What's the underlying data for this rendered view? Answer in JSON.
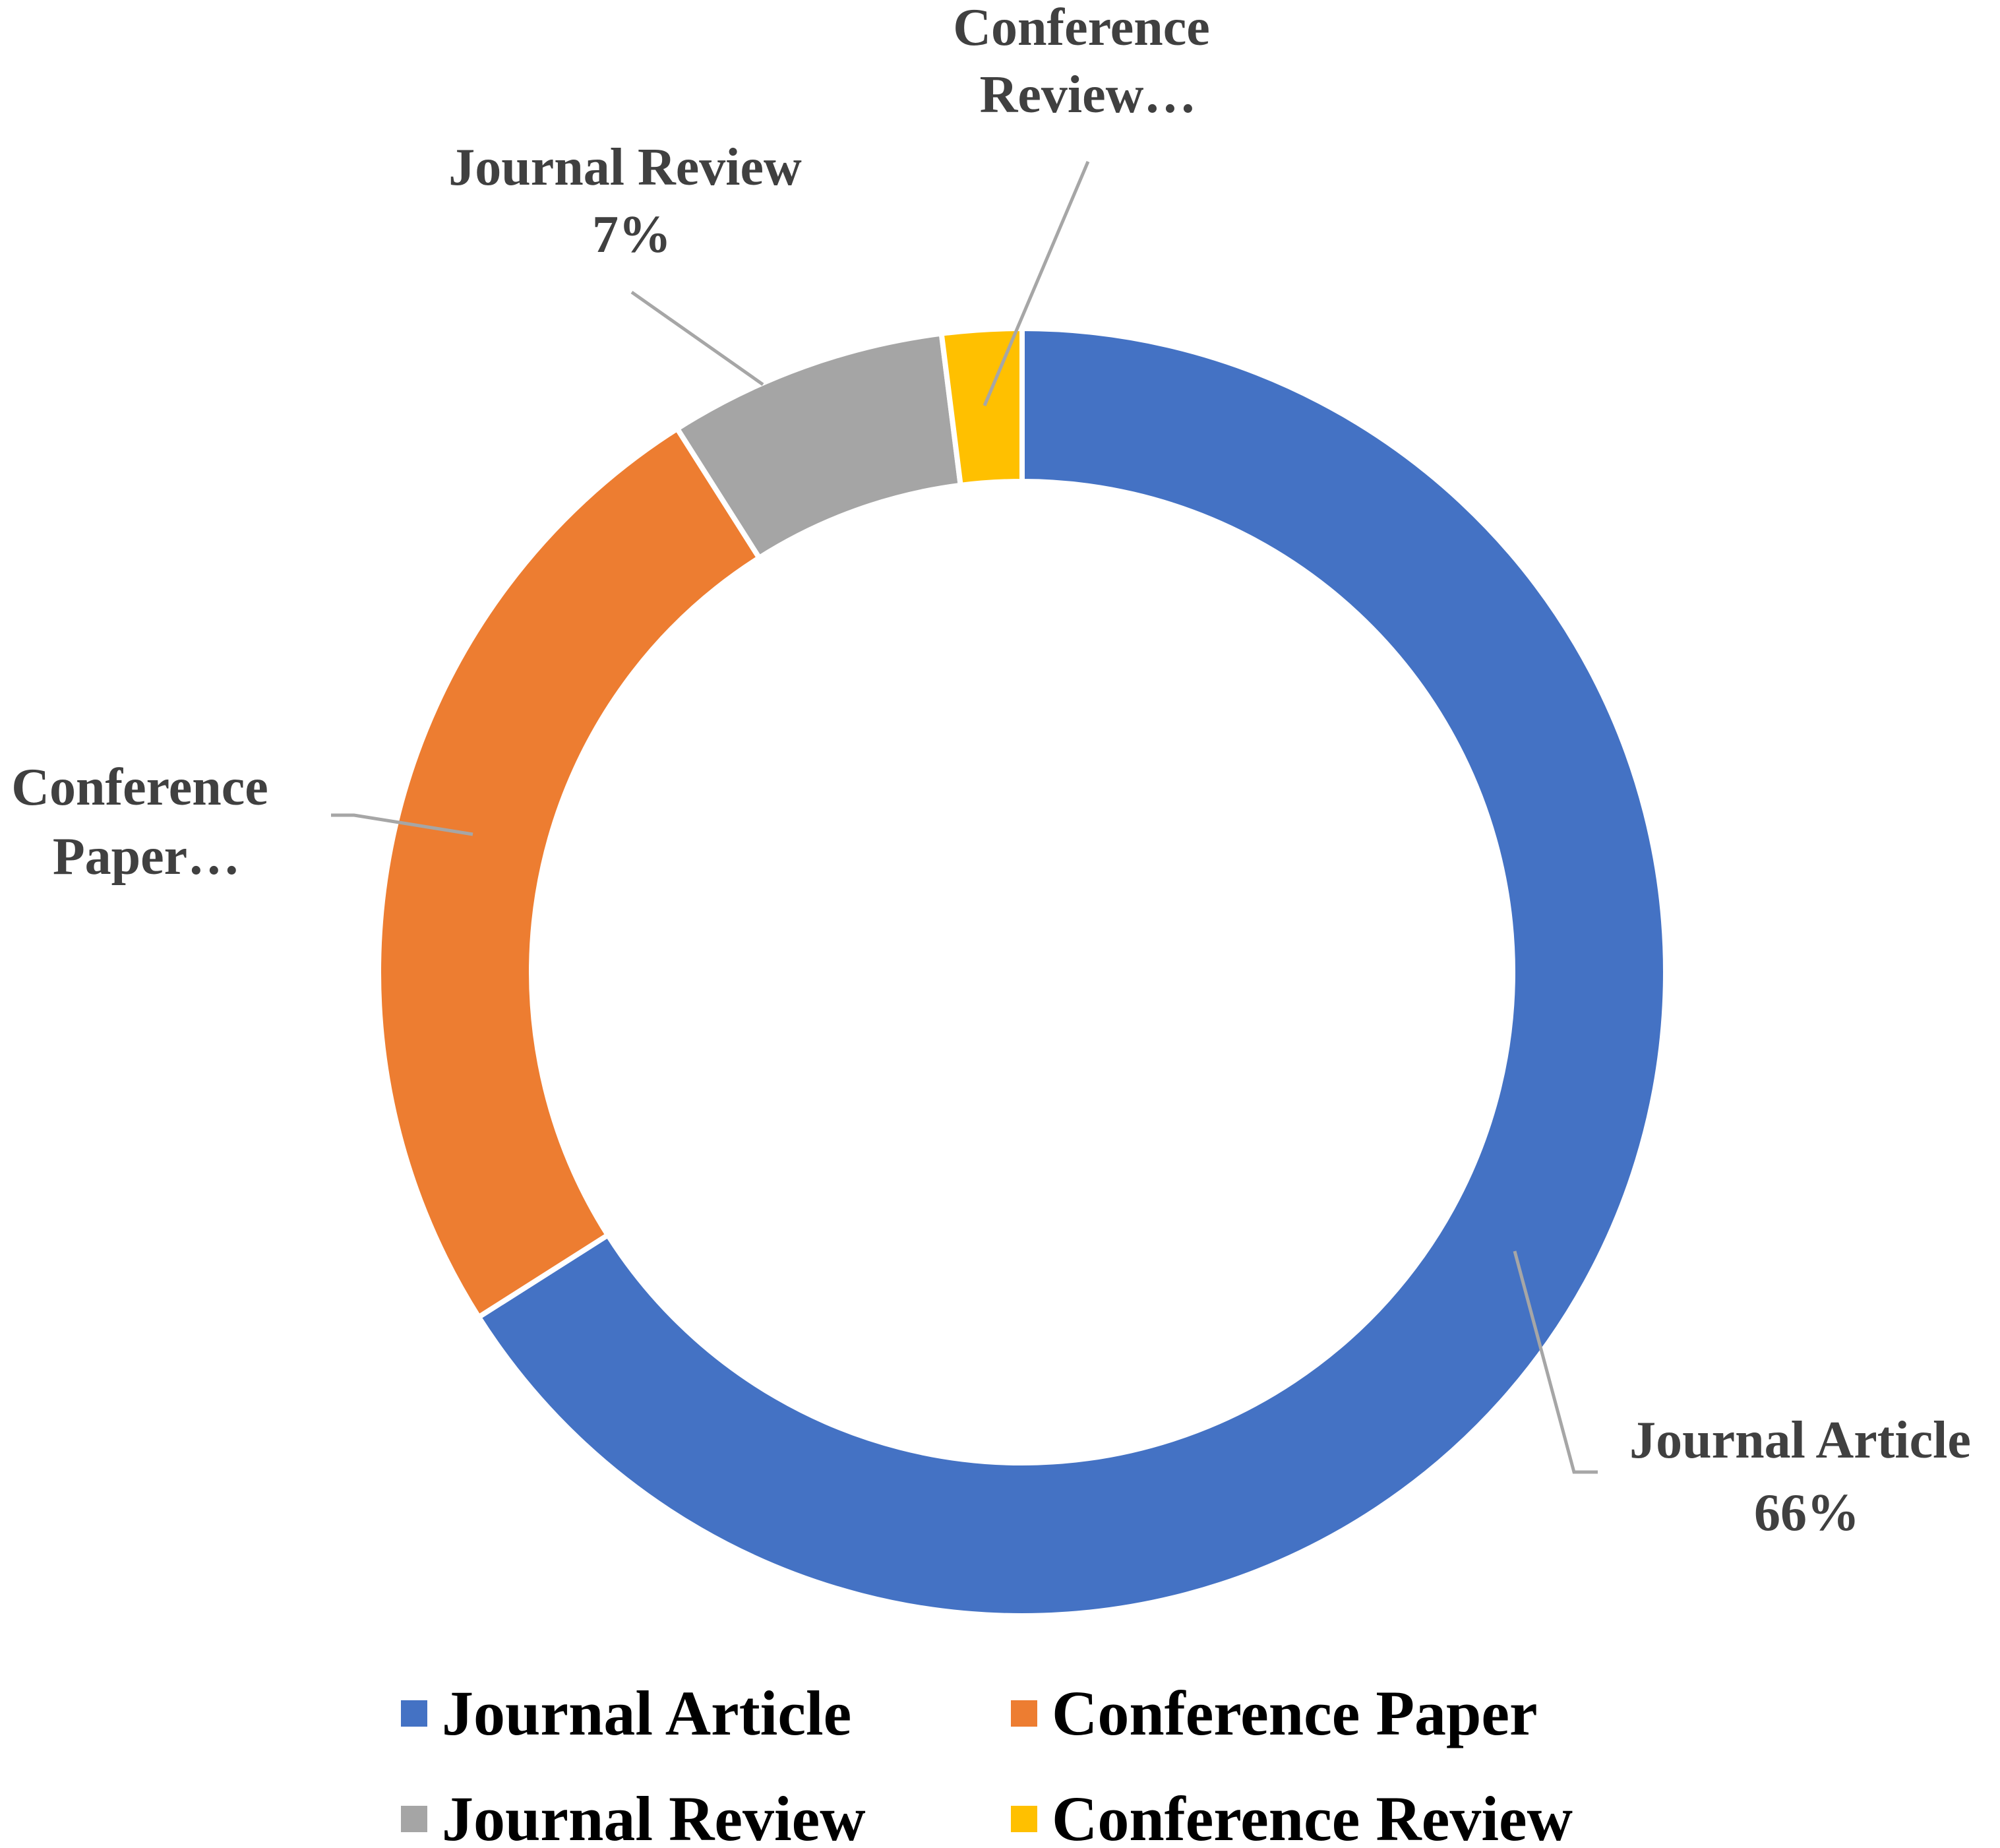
{
  "chart_data": {
    "type": "pie",
    "subtype": "doughnut",
    "title": "",
    "categories": [
      "Journal Article",
      "Conference Paper",
      "Journal Review",
      "Conference Review"
    ],
    "values": [
      66,
      25,
      7,
      2
    ],
    "unit": "%",
    "colors": [
      "#4472c4",
      "#ed7d31",
      "#a5a5a5",
      "#ffc000"
    ],
    "start_angle": "12 o'clock, clockwise",
    "legend_position": "bottom",
    "data_labels": [
      {
        "category_line": "Journal Article",
        "value_line": "66%"
      },
      {
        "category_line": "Conference",
        "value_line": "Paper…"
      },
      {
        "category_line": "Journal Review",
        "value_line": "7%"
      },
      {
        "category_line": "Conference",
        "value_line": "Review…"
      }
    ],
    "legend": [
      {
        "label": "Journal Article",
        "color": "#4472c4"
      },
      {
        "label": "Conference Paper",
        "color": "#ed7d31"
      },
      {
        "label": "Journal Review",
        "color": "#a5a5a5"
      },
      {
        "label": "Conference Review",
        "color": "#ffc000"
      }
    ]
  }
}
